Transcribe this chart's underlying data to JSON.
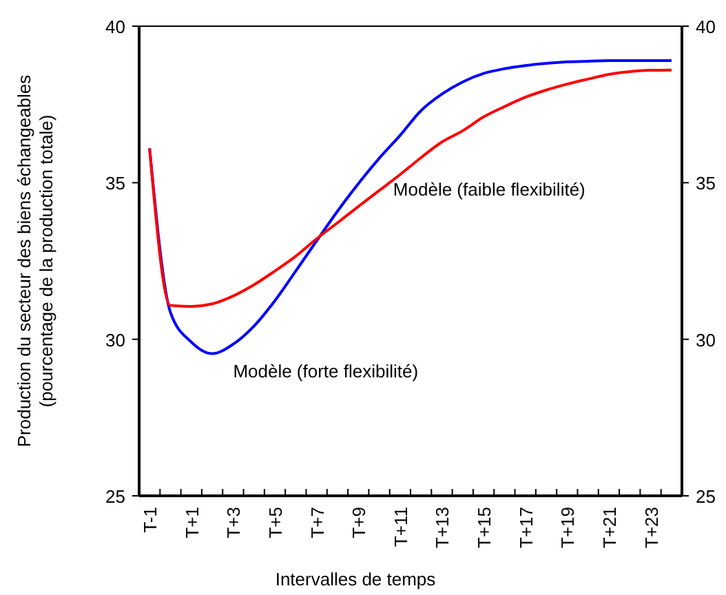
{
  "chart_data": {
    "type": "line",
    "xlabel": "Intervalles de temps",
    "ylabel": "Production du secteur des biens échangeables\n(pourcentage de la production totale)",
    "categories": [
      "T-1",
      null,
      "T+1",
      null,
      "T+3",
      null,
      "T+5",
      null,
      "T+7",
      null,
      "T+9",
      null,
      "T+11",
      null,
      "T+13",
      null,
      "T+15",
      null,
      "T+17",
      null,
      "T+19",
      null,
      "T+21",
      null,
      "T+23",
      null
    ],
    "ylim": [
      25,
      40
    ],
    "yticks": [
      25,
      30,
      35,
      40
    ],
    "y2lim": [
      25,
      40
    ],
    "y2ticks": [
      25,
      30,
      35,
      40
    ],
    "grid": false,
    "marker": "none",
    "line_style": "solid",
    "series": [
      {
        "name": "Modèle (forte flexibilité)",
        "color": "#0000ff",
        "values": [
          36.1,
          30.86,
          29.91,
          29.54,
          29.84,
          30.42,
          31.23,
          32.18,
          33.14,
          34.09,
          34.97,
          35.78,
          36.51,
          37.3,
          37.83,
          38.22,
          38.49,
          38.64,
          38.74,
          38.81,
          38.86,
          38.88,
          38.9,
          38.9,
          38.9,
          38.9
        ]
      },
      {
        "name": "Modèle (faible flexibilité)",
        "color": "#ff0000",
        "values": [
          36.1,
          31.08,
          31.05,
          31.13,
          31.38,
          31.74,
          32.18,
          32.65,
          33.21,
          33.72,
          34.24,
          34.75,
          35.26,
          35.8,
          36.3,
          36.66,
          37.1,
          37.43,
          37.73,
          37.96,
          38.15,
          38.31,
          38.46,
          38.55,
          38.59,
          38.6
        ]
      }
    ]
  }
}
